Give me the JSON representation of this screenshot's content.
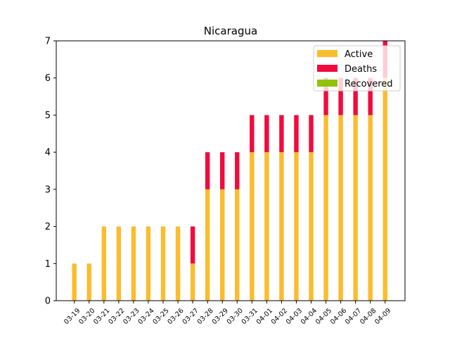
{
  "chart_data": {
    "type": "bar",
    "stacked": true,
    "title": "Nicaragua",
    "xlabel": "",
    "ylabel": "",
    "ylim": [
      0,
      7
    ],
    "yticks": [
      0,
      1,
      2,
      3,
      4,
      5,
      6,
      7
    ],
    "grid": false,
    "legend_position": "top-right",
    "categories": [
      "03-19",
      "03-20",
      "03-21",
      "03-22",
      "03-23",
      "03-24",
      "03-25",
      "03-26",
      "03-27",
      "03-28",
      "03-29",
      "03-30",
      "03-31",
      "04-01",
      "04-02",
      "04-03",
      "04-04",
      "04-05",
      "04-06",
      "04-07",
      "04-08",
      "04-09"
    ],
    "series": [
      {
        "name": "Active",
        "color": "#fbbc2e",
        "values": [
          1,
          1,
          2,
          2,
          2,
          2,
          2,
          2,
          1,
          3,
          3,
          3,
          4,
          4,
          4,
          4,
          4,
          5,
          5,
          5,
          5,
          6
        ]
      },
      {
        "name": "Deaths",
        "color": "#f20a3d",
        "values": [
          0,
          0,
          0,
          0,
          0,
          0,
          0,
          0,
          1,
          1,
          1,
          1,
          1,
          1,
          1,
          1,
          1,
          1,
          1,
          1,
          1,
          1
        ]
      },
      {
        "name": "Recovered",
        "color": "#92c30a",
        "values": [
          0,
          0,
          0,
          0,
          0,
          0,
          0,
          0,
          0,
          0,
          0,
          0,
          0,
          0,
          0,
          0,
          0,
          0,
          0,
          0,
          0,
          0
        ]
      }
    ]
  }
}
